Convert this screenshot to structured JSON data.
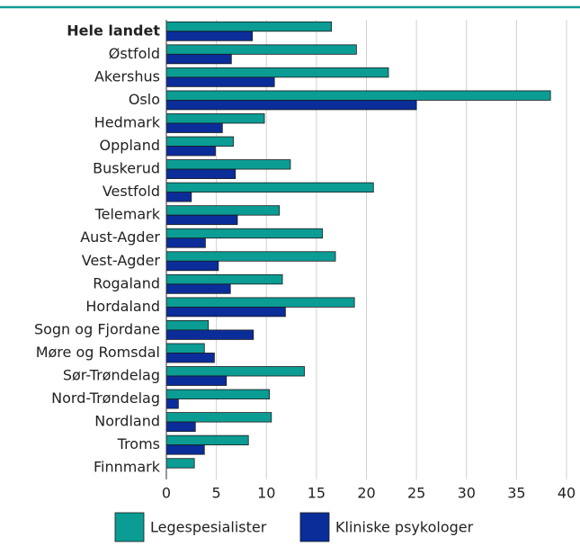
{
  "chart_data": {
    "type": "hbar",
    "categories": [
      "Hele landet",
      "Østfold",
      "Akershus",
      "Oslo",
      "Hedmark",
      "Oppland",
      "Buskerud",
      "Vestfold",
      "Telemark",
      "Aust-Agder",
      "Vest-Agder",
      "Rogaland",
      "Hordaland",
      "Sogn og Fjordane",
      "Møre og Romsdal",
      "Sør-Trøndelag",
      "Nord-Trøndelag",
      "Nordland",
      "Troms",
      "Finnmark"
    ],
    "series": [
      {
        "name": "Legespesialister",
        "color": "#0b9c94",
        "values": [
          16.5,
          19.0,
          22.2,
          38.4,
          9.8,
          6.7,
          12.4,
          20.7,
          11.3,
          15.6,
          16.9,
          11.6,
          18.8,
          4.2,
          3.8,
          13.8,
          10.3,
          10.5,
          8.2,
          2.8
        ]
      },
      {
        "name": "Kliniske psykologer",
        "color": "#0a2d9a",
        "values": [
          8.6,
          6.5,
          10.8,
          25.0,
          5.6,
          4.9,
          6.9,
          2.5,
          7.1,
          3.9,
          5.2,
          6.4,
          11.9,
          8.7,
          4.8,
          6.0,
          1.2,
          2.9,
          3.8,
          null
        ]
      }
    ],
    "xlim": [
      0,
      40
    ],
    "xticks": [
      0,
      5,
      10,
      15,
      20,
      25,
      30,
      35,
      40
    ],
    "grid": true,
    "legend": "bottom"
  }
}
